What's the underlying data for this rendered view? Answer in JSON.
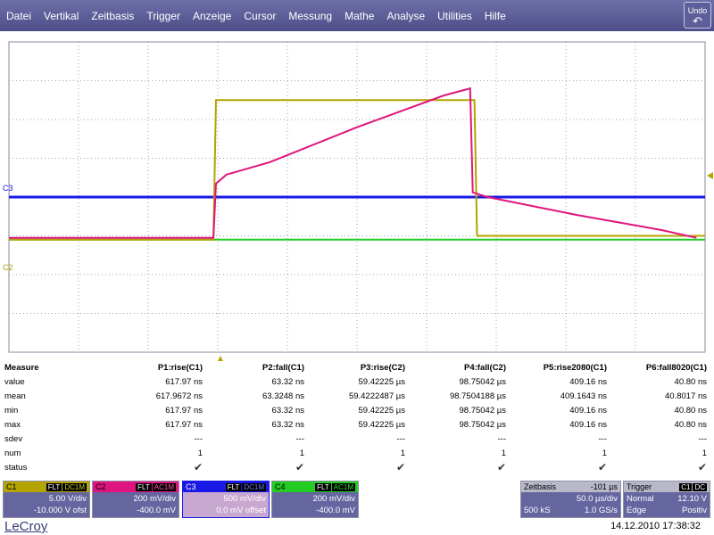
{
  "menu": [
    "Datei",
    "Vertikal",
    "Zeitbasis",
    "Trigger",
    "Anzeige",
    "Cursor",
    "Messung",
    "Mathe",
    "Analyse",
    "Utilities",
    "Hilfe"
  ],
  "undo_label": "Undo",
  "plot": {
    "channel_labels": [
      "C3",
      "C2"
    ],
    "colors": {
      "C1": "#b3a400",
      "C2": "#e0147e",
      "C3": "#1a1ae6",
      "C4": "#22cc22",
      "grid": "#8a8aa0"
    },
    "scope_traces": {
      "time_axis": "div",
      "C1": [
        [
          0,
          -1.1
        ],
        [
          2.35,
          -1.1
        ],
        [
          2.38,
          2.5
        ],
        [
          5.35,
          2.5
        ],
        [
          5.38,
          -1.0
        ],
        [
          8.0,
          -1.0
        ]
      ],
      "C2": [
        [
          0,
          -1.05
        ],
        [
          2.35,
          -1.05
        ],
        [
          2.38,
          0.35
        ],
        [
          2.5,
          0.58
        ],
        [
          3.0,
          0.9
        ],
        [
          4.0,
          1.8
        ],
        [
          5.0,
          2.62
        ],
        [
          5.3,
          2.8
        ],
        [
          5.33,
          0.12
        ],
        [
          5.5,
          0.0
        ],
        [
          6.5,
          -0.45
        ],
        [
          7.5,
          -0.85
        ],
        [
          7.9,
          -1.05
        ]
      ],
      "C3": [
        [
          0,
          0
        ],
        [
          8.0,
          0
        ]
      ],
      "C4": [
        [
          0,
          -1.1
        ],
        [
          8.0,
          -1.1
        ]
      ]
    }
  },
  "measure": {
    "header": "Measure",
    "columns": [
      "P1:rise(C1)",
      "P2:fall(C1)",
      "P3:rise(C2)",
      "P4:fall(C2)",
      "P5:rise2080(C1)",
      "P6:fall8020(C1)"
    ],
    "rows": [
      {
        "label": "value",
        "cells": [
          "617.97 ns",
          "63.32 ns",
          "59.42225 µs",
          "98.75042 µs",
          "409.16 ns",
          "40.80 ns"
        ]
      },
      {
        "label": "mean",
        "cells": [
          "617.9672 ns",
          "63.3248 ns",
          "59.4222487 µs",
          "98.7504188 µs",
          "409.1643 ns",
          "40.8017 ns"
        ]
      },
      {
        "label": "min",
        "cells": [
          "617.97 ns",
          "63.32 ns",
          "59.42225 µs",
          "98.75042 µs",
          "409.16 ns",
          "40.80 ns"
        ]
      },
      {
        "label": "max",
        "cells": [
          "617.97 ns",
          "63.32 ns",
          "59.42225 µs",
          "98.75042 µs",
          "409.16 ns",
          "40.80 ns"
        ]
      },
      {
        "label": "sdev",
        "cells": [
          "---",
          "---",
          "---",
          "---",
          "---",
          "---"
        ]
      },
      {
        "label": "num",
        "cells": [
          "1",
          "1",
          "1",
          "1",
          "1",
          "1"
        ]
      },
      {
        "label": "status",
        "cells": [
          "✔",
          "✔",
          "✔",
          "✔",
          "✔",
          "✔"
        ]
      }
    ]
  },
  "channels": [
    {
      "name": "C1",
      "tags": [
        "FLT",
        "DC1M"
      ],
      "line1": "5.00 V/div",
      "line2": "-10.000 V ofst",
      "color": "#c8b400"
    },
    {
      "name": "C2",
      "tags": [
        "FLT",
        "AC1M"
      ],
      "line1": "200 mV/div",
      "line2": "-400.0 mV",
      "color": "#e0147e"
    },
    {
      "name": "C3",
      "tags": [
        "FLT",
        "DC1M"
      ],
      "line1": "500 mV/div",
      "line2": "0.0 mV offset",
      "color": "#1a1ae6"
    },
    {
      "name": "C4",
      "tags": [
        "FLT",
        "AC1M"
      ],
      "line1": "200 mV/div",
      "line2": "-400.0 mV",
      "color": "#22cc22"
    }
  ],
  "timebase": {
    "label": "Zeitbasis",
    "delay": "-101 µs",
    "per_div": "50.0 µs/div",
    "samples": "500 kS",
    "rate": "1.0 GS/s"
  },
  "trigger": {
    "label": "Trigger",
    "tags": [
      "C1",
      "DC"
    ],
    "level": "12.10 V",
    "mode": "Normal",
    "type": "Edge",
    "slope": "Positiv"
  },
  "brand": "LeCroy",
  "timestamp": "14.12.2010 17:38:32"
}
